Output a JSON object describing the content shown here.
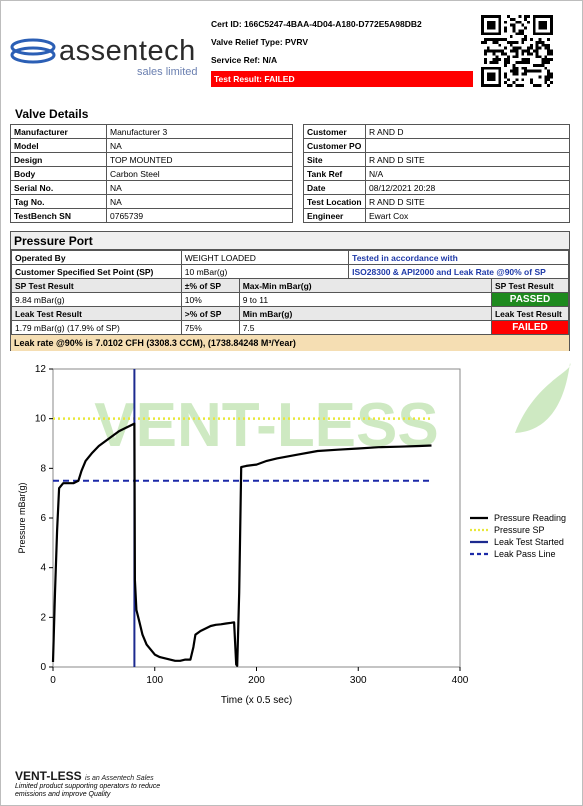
{
  "header": {
    "logo_word": "assentech",
    "logo_sub": "sales limited",
    "cert_id": "Cert ID: 166C5247-4BAA-4D04-A180-D772E5A98DB2",
    "valve_relief_type": "Valve Relief Type: PVRV",
    "service_ref": "Service Ref: N/A",
    "test_result": "Test Result: FAILED"
  },
  "valve_details": {
    "title": "Valve Details",
    "left": [
      {
        "label": "Manufacturer",
        "value": "Manufacturer 3"
      },
      {
        "label": "Model",
        "value": "NA"
      },
      {
        "label": "Design",
        "value": "TOP MOUNTED"
      },
      {
        "label": "Body",
        "value": "Carbon Steel"
      },
      {
        "label": "Serial No.",
        "value": "NA"
      },
      {
        "label": "Tag No.",
        "value": "NA"
      },
      {
        "label": "TestBench SN",
        "value": "0765739"
      }
    ],
    "right": [
      {
        "label": "Customer",
        "value": "R AND D"
      },
      {
        "label": "Customer PO",
        "value": ""
      },
      {
        "label": "Site",
        "value": "R AND D SITE"
      },
      {
        "label": "Tank Ref",
        "value": "N/A"
      },
      {
        "label": "Date",
        "value": "08/12/2021 20:28"
      },
      {
        "label": "Test Location",
        "value": "R AND D SITE"
      },
      {
        "label": "Engineer",
        "value": "Ewart Cox"
      }
    ]
  },
  "pressure_port": {
    "title": "Pressure Port",
    "operated_by_label": "Operated By",
    "operated_by_value": "WEIGHT LOADED",
    "tested_label": "Tested in accordance with",
    "set_point_label": "Customer Specified Set Point (SP)",
    "set_point_value": "10 mBar(g)",
    "standards": "ISO28300 & API2000 and Leak Rate @90% of SP",
    "sp_result_label": "SP Test Result",
    "sp_pct_label": "±% of SP",
    "sp_maxmin_label": "Max-Min  mBar(g)",
    "sp_result_head": "SP Test Result",
    "sp_value": "9.84 mBar(g)",
    "sp_pct": "10%",
    "sp_maxmin": "9 to 11",
    "sp_status": "PASSED",
    "leak_result_label": "Leak Test Result",
    "leak_pct_label": ">% of SP",
    "leak_min_label": "Min  mBar(g)",
    "leak_result_head": "Leak Test Result",
    "leak_value": "1.79 mBar(g) (17.9% of SP)",
    "leak_pct": "75%",
    "leak_min": "7.5",
    "leak_status": "FAILED",
    "leak_rate": "Leak rate @90% is 7.0102 CFH (3308.3 CCM), (1738.84248 M³/Year)"
  },
  "chart_data": {
    "type": "line",
    "watermark": "VENT-LESS",
    "xlabel": "Time (x 0.5 sec)",
    "ylabel": "Pressure mBar(g)",
    "xlim": [
      0,
      400
    ],
    "ylim": [
      0,
      12
    ],
    "xticks": [
      0,
      100,
      200,
      300,
      400
    ],
    "yticks": [
      0,
      2,
      4,
      6,
      8,
      10,
      12
    ],
    "legend_position": "right",
    "series": [
      {
        "name": "Pressure Reading",
        "color": "#000000",
        "x": [
          0,
          2,
          4,
          6,
          10,
          15,
          20,
          25,
          28,
          32,
          38,
          45,
          55,
          65,
          75,
          80,
          80.5,
          82,
          85,
          88,
          92,
          96,
          100,
          105,
          110,
          115,
          120,
          125,
          130,
          135,
          138,
          140,
          145,
          150,
          155,
          160,
          165,
          170,
          175,
          178,
          180,
          181,
          183,
          185,
          190,
          200,
          210,
          220,
          240,
          260,
          280,
          300,
          320,
          340,
          360,
          372
        ],
        "y": [
          0.2,
          3,
          5.5,
          7.2,
          7.4,
          7.4,
          7.4,
          7.5,
          7.9,
          8.3,
          8.6,
          8.9,
          9.2,
          9.5,
          9.7,
          9.8,
          3.5,
          2.3,
          1.8,
          1.3,
          0.9,
          0.7,
          0.5,
          0.4,
          0.35,
          0.3,
          0.25,
          0.25,
          0.3,
          0.3,
          0.8,
          1.3,
          1.45,
          1.55,
          1.65,
          1.7,
          1.72,
          1.75,
          1.78,
          1.8,
          0.1,
          0.05,
          3.0,
          8.05,
          8.1,
          8.15,
          8.3,
          8.4,
          8.55,
          8.7,
          8.75,
          8.8,
          8.85,
          8.87,
          8.9,
          8.92
        ]
      },
      {
        "name": "Pressure SP",
        "color": "#e8e83a",
        "style": "dotted",
        "y_const": 10
      },
      {
        "name": "Leak Test Started",
        "color": "#1c2a8f",
        "style": "vertical",
        "x_const": 80
      },
      {
        "name": "Leak Pass Line",
        "color": "#1c2aa8",
        "style": "dashed",
        "y_const": 7.5
      }
    ]
  },
  "footer": {
    "brand": "VENT-LESS",
    "brand_suffix": "is an Assentech Sales",
    "line1": "Limited product supporting operators to reduce",
    "line2": "emissions and improve Quality"
  },
  "colors": {
    "failed": "#ff0000",
    "passed": "#1e8a1e",
    "logo_blue": "#2b5fb5",
    "watermark_green": "#b9e0a8"
  }
}
